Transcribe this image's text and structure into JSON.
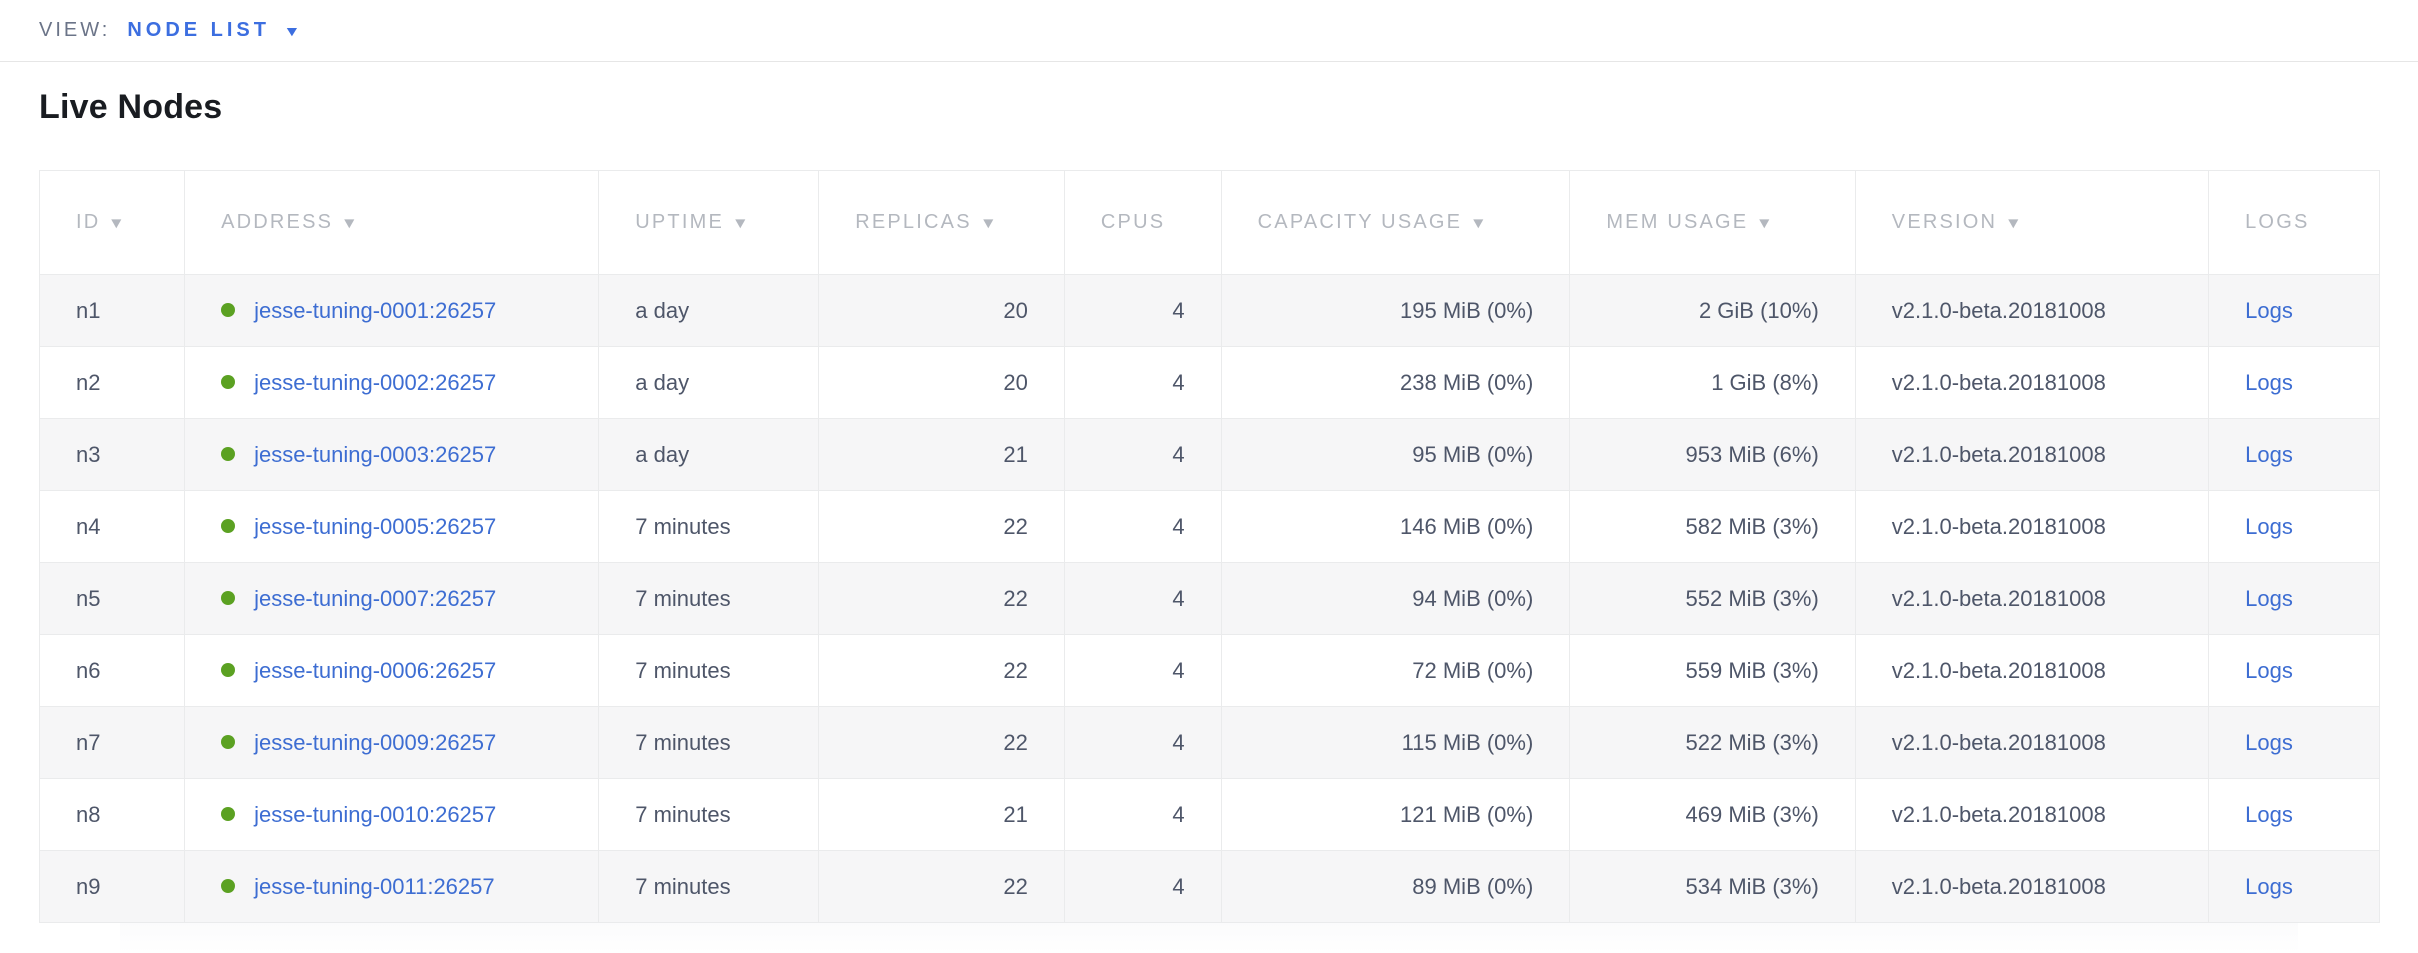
{
  "view_bar": {
    "label": "VIEW:",
    "selected": "NODE LIST"
  },
  "icons": {
    "dropdown_caret": "▼",
    "sort_caret": "▼",
    "live_dot_color": "#5ba122"
  },
  "page": {
    "title": "Live Nodes"
  },
  "colors": {
    "link_blue": "#3d6dd2",
    "view_blue": "#3c6ee0",
    "header_gray": "#b4b8bf",
    "cell_text": "#4e5669",
    "row_stripe": "#f6f6f7",
    "border": "#eaebec",
    "live_green": "#5ba122"
  },
  "table": {
    "columns": [
      {
        "key": "id",
        "label": "ID",
        "sortable": true
      },
      {
        "key": "address",
        "label": "ADDRESS",
        "sortable": true
      },
      {
        "key": "uptime",
        "label": "UPTIME",
        "sortable": true
      },
      {
        "key": "replicas",
        "label": "REPLICAS",
        "sortable": true
      },
      {
        "key": "cpus",
        "label": "CPUS",
        "sortable": false
      },
      {
        "key": "capacity",
        "label": "CAPACITY USAGE",
        "sortable": true
      },
      {
        "key": "mem",
        "label": "MEM USAGE",
        "sortable": true
      },
      {
        "key": "version",
        "label": "VERSION",
        "sortable": true
      },
      {
        "key": "logs",
        "label": "LOGS",
        "sortable": false
      }
    ],
    "rows": [
      {
        "id": "n1",
        "address": "jesse-tuning-0001:26257",
        "uptime": "a day",
        "replicas": "20",
        "cpus": "4",
        "capacity": "195 MiB (0%)",
        "mem": "2 GiB (10%)",
        "version": "v2.1.0-beta.20181008",
        "logs": "Logs"
      },
      {
        "id": "n2",
        "address": "jesse-tuning-0002:26257",
        "uptime": "a day",
        "replicas": "20",
        "cpus": "4",
        "capacity": "238 MiB (0%)",
        "mem": "1 GiB (8%)",
        "version": "v2.1.0-beta.20181008",
        "logs": "Logs"
      },
      {
        "id": "n3",
        "address": "jesse-tuning-0003:26257",
        "uptime": "a day",
        "replicas": "21",
        "cpus": "4",
        "capacity": "95 MiB (0%)",
        "mem": "953 MiB (6%)",
        "version": "v2.1.0-beta.20181008",
        "logs": "Logs"
      },
      {
        "id": "n4",
        "address": "jesse-tuning-0005:26257",
        "uptime": "7 minutes",
        "replicas": "22",
        "cpus": "4",
        "capacity": "146 MiB (0%)",
        "mem": "582 MiB (3%)",
        "version": "v2.1.0-beta.20181008",
        "logs": "Logs"
      },
      {
        "id": "n5",
        "address": "jesse-tuning-0007:26257",
        "uptime": "7 minutes",
        "replicas": "22",
        "cpus": "4",
        "capacity": "94 MiB (0%)",
        "mem": "552 MiB (3%)",
        "version": "v2.1.0-beta.20181008",
        "logs": "Logs"
      },
      {
        "id": "n6",
        "address": "jesse-tuning-0006:26257",
        "uptime": "7 minutes",
        "replicas": "22",
        "cpus": "4",
        "capacity": "72 MiB (0%)",
        "mem": "559 MiB (3%)",
        "version": "v2.1.0-beta.20181008",
        "logs": "Logs"
      },
      {
        "id": "n7",
        "address": "jesse-tuning-0009:26257",
        "uptime": "7 minutes",
        "replicas": "22",
        "cpus": "4",
        "capacity": "115 MiB (0%)",
        "mem": "522 MiB (3%)",
        "version": "v2.1.0-beta.20181008",
        "logs": "Logs"
      },
      {
        "id": "n8",
        "address": "jesse-tuning-0010:26257",
        "uptime": "7 minutes",
        "replicas": "21",
        "cpus": "4",
        "capacity": "121 MiB (0%)",
        "mem": "469 MiB (3%)",
        "version": "v2.1.0-beta.20181008",
        "logs": "Logs"
      },
      {
        "id": "n9",
        "address": "jesse-tuning-0011:26257",
        "uptime": "7 minutes",
        "replicas": "22",
        "cpus": "4",
        "capacity": "89 MiB (0%)",
        "mem": "534 MiB (3%)",
        "version": "v2.1.0-beta.20181008",
        "logs": "Logs"
      }
    ]
  }
}
